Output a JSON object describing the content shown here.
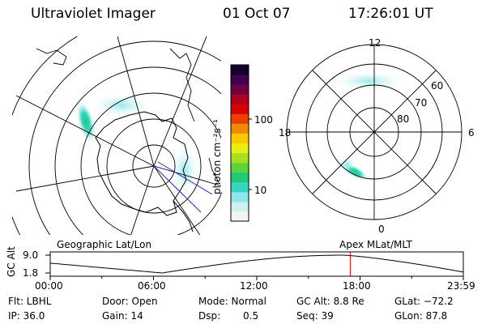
{
  "header": {
    "instrument": "Ultraviolet Imager",
    "date": "01 Oct 07",
    "time": "17:26:01 UT"
  },
  "left_map": {
    "label": "Geographic Lat/Lon"
  },
  "colorbar": {
    "unit": "photon cm⁻²s⁻¹",
    "tick_labels": [
      "100",
      "10"
    ],
    "colors": [
      "#f4f4f4",
      "#cfeff2",
      "#8ee6ea",
      "#35d6c0",
      "#22c97a",
      "#5ad63a",
      "#a8e020",
      "#e6ef10",
      "#f8c800",
      "#f08a00",
      "#e84000",
      "#d80000",
      "#b00020",
      "#700040",
      "#400050",
      "#14002a"
    ]
  },
  "right_map": {
    "label": "Apex MLat/MLT",
    "mlt_labels": [
      "12",
      "18",
      "6",
      "0"
    ],
    "mlat_labels": [
      "60",
      "70",
      "80"
    ]
  },
  "timeline": {
    "ylabel": "GC Alt",
    "ytick_labels": [
      "9.0",
      "1.8"
    ],
    "xtick_labels": [
      "00:00",
      "06:00",
      "12:00",
      "18:00",
      "23:59"
    ],
    "current_time_hours": 17.43,
    "marker_color": "#e00000"
  },
  "info": {
    "filter": "Flt: LBHL",
    "ip": "IP: 36.0",
    "door": "Door: Open",
    "gain": "Gain: 14",
    "mode": "Mode: Normal",
    "dsp_label": "Dsp:",
    "dsp_value": "0.5",
    "gc_alt": "GC Alt: 8.8 Re",
    "seq": "Seq: 39",
    "glat": "GLat: −72.2",
    "glon": "GLon: 87.8"
  }
}
